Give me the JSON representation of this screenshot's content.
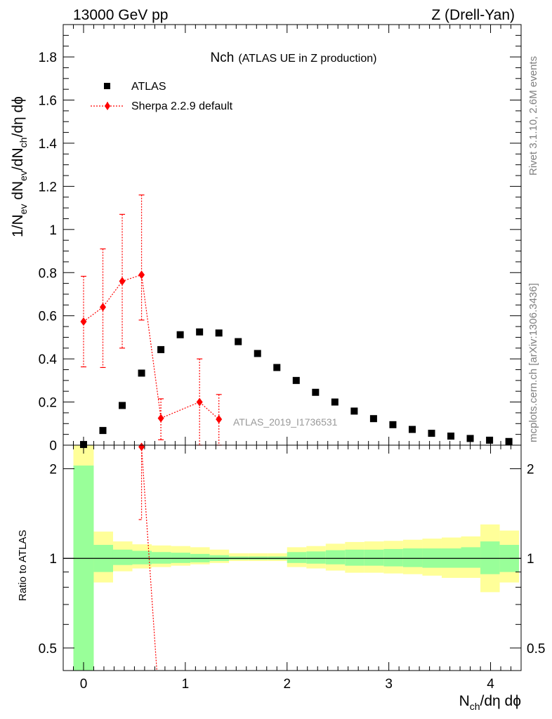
{
  "header": {
    "left": "13000 GeV pp",
    "right": "Z (Drell-Yan)"
  },
  "side_labels": {
    "rivet": "Rivet 3.1.10,  2.6M events",
    "mcplots": "mcplots.cern.ch [arXiv:1306.3436]"
  },
  "chart_data": {
    "type": "scatter",
    "title_main": "Nch",
    "title_sub": "(ATLAS UE in Z production)",
    "analysis_tag": "ATLAS_2019_I1736531",
    "ylabel": {
      "p1": "1/N",
      "s1": "ev",
      "p2": " dN",
      "s2": "ev",
      "p3": "/dN",
      "s3": "ch",
      "p4": "/dη dϕ"
    },
    "xlabel": {
      "p1": "N",
      "s1": "ch",
      "p2": "/dη dϕ"
    },
    "ratio_ylabel": "Ratio to ATLAS",
    "xlim": [
      -0.2,
      4.3
    ],
    "ylim": [
      0,
      1.95
    ],
    "xticks": [
      0,
      1,
      2,
      3,
      4
    ],
    "xtick_labels": [
      "0",
      "1",
      "2",
      "3",
      "4"
    ],
    "yticks": [
      0,
      0.2,
      0.4,
      0.6,
      0.8,
      1,
      1.2,
      1.4,
      1.6,
      1.8
    ],
    "ytick_labels": [
      "0",
      "0.2",
      "0.4",
      "0.6",
      "0.8",
      "1",
      "1.2",
      "1.4",
      "1.6",
      "1.8"
    ],
    "ratio_ylim": [
      0.42,
      2.4
    ],
    "ratio_yticks": [
      0.5,
      1,
      2
    ],
    "ratio_ytick_labels": [
      "0.5",
      "1",
      "2"
    ],
    "legend": [
      {
        "name": "ATLAS",
        "marker": "square",
        "color": "#000000"
      },
      {
        "name": "Sherpa 2.2.9 default",
        "marker": "diamond",
        "color": "#ff0000"
      }
    ],
    "series": [
      {
        "name": "ATLAS",
        "color": "#000000",
        "x": [
          0.0,
          0.19,
          0.38,
          0.57,
          0.76,
          0.95,
          1.14,
          1.33,
          1.52,
          1.71,
          1.9,
          2.09,
          2.28,
          2.47,
          2.66,
          2.85,
          3.04,
          3.23,
          3.42,
          3.61,
          3.8,
          3.99,
          4.18
        ],
        "y": [
          0.003,
          0.068,
          0.184,
          0.334,
          0.443,
          0.512,
          0.525,
          0.52,
          0.48,
          0.425,
          0.36,
          0.3,
          0.245,
          0.2,
          0.158,
          0.123,
          0.095,
          0.073,
          0.055,
          0.042,
          0.031,
          0.023,
          0.017
        ]
      },
      {
        "name": "Sherpa 2.2.9 default",
        "color": "#ff0000",
        "x": [
          0.0,
          0.19,
          0.38,
          0.57,
          0.76,
          1.14,
          1.33
        ],
        "y": [
          0.573,
          0.64,
          0.76,
          0.79,
          0.125,
          0.2,
          0.12
        ],
        "err_low": [
          0.21,
          0.28,
          0.31,
          0.21,
          0.1,
          0.2,
          0.12
        ],
        "err_high": [
          0.21,
          0.27,
          0.31,
          0.37,
          0.09,
          0.2,
          0.115
        ]
      }
    ],
    "ratio_bands": {
      "bin_edges": [
        -0.1,
        0.1,
        0.29,
        0.48,
        0.67,
        0.86,
        1.05,
        1.24,
        1.43,
        1.62,
        1.81,
        2.0,
        2.19,
        2.38,
        2.57,
        2.76,
        2.95,
        3.14,
        3.33,
        3.52,
        3.71,
        3.9,
        4.09,
        4.28
      ],
      "green_low": [
        0.42,
        0.9,
        0.95,
        0.955,
        0.96,
        0.965,
        0.97,
        0.98,
        0.99,
        0.99,
        0.99,
        0.965,
        0.96,
        0.955,
        0.945,
        0.945,
        0.94,
        0.935,
        0.93,
        0.93,
        0.93,
        0.885,
        0.9
      ],
      "green_high": [
        2.05,
        1.11,
        1.07,
        1.06,
        1.05,
        1.045,
        1.035,
        1.025,
        1.015,
        1.015,
        1.015,
        1.05,
        1.055,
        1.065,
        1.07,
        1.07,
        1.075,
        1.08,
        1.08,
        1.08,
        1.09,
        1.14,
        1.11
      ],
      "yellow_low": [
        0.42,
        0.83,
        0.905,
        0.925,
        0.935,
        0.945,
        0.955,
        0.965,
        0.98,
        0.98,
        0.98,
        0.935,
        0.925,
        0.91,
        0.895,
        0.895,
        0.89,
        0.885,
        0.875,
        0.86,
        0.86,
        0.77,
        0.83
      ],
      "yellow_high": [
        2.4,
        1.23,
        1.14,
        1.115,
        1.105,
        1.1,
        1.09,
        1.07,
        1.04,
        1.04,
        1.04,
        1.09,
        1.1,
        1.12,
        1.135,
        1.14,
        1.145,
        1.155,
        1.165,
        1.175,
        1.185,
        1.3,
        1.24
      ]
    },
    "ratio_series": {
      "name": "Sherpa 2.2.9 default",
      "marker_x": 0.57,
      "marker_y": 2.37,
      "err_low_to": 1.35,
      "line_x": [
        0.57,
        0.72
      ],
      "line_y": [
        2.37,
        0.42
      ]
    }
  }
}
